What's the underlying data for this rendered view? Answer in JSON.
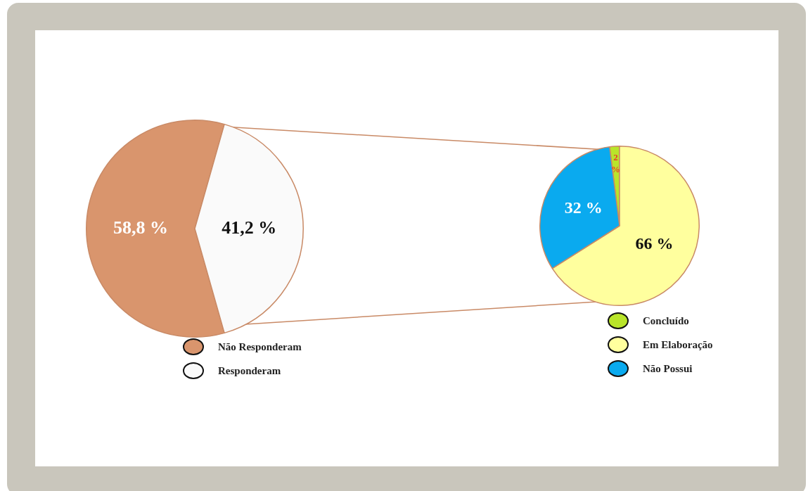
{
  "chart_data": [
    {
      "type": "pie",
      "categories": [
        "Não Responderam",
        "Responderam"
      ],
      "values": [
        58.8,
        41.2
      ],
      "colors": [
        "#d9956d",
        "#fafafa"
      ],
      "value_labels": [
        "58,8 %",
        "41,2 %"
      ],
      "legend": "bottom"
    },
    {
      "type": "pie",
      "categories": [
        "Concluído",
        "Em Elaboração",
        "Não Possui"
      ],
      "values": [
        2,
        66,
        32
      ],
      "colors": [
        "#b9e52a",
        "#ffff9e",
        "#0aaaef"
      ],
      "value_labels": [
        "2 %",
        "66 %",
        "32 %"
      ],
      "legend": "bottom"
    }
  ]
}
